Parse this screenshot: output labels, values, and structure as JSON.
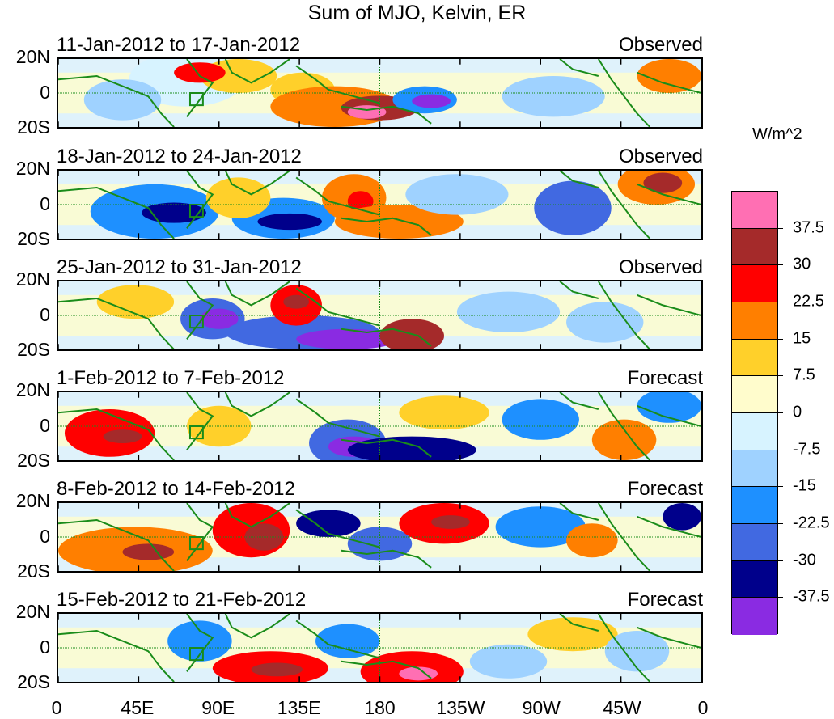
{
  "figure": {
    "title": "Sum of MJO, Kelvin, ER",
    "units": "W/m^2"
  },
  "panels": [
    {
      "period": "11-Jan-2012 to 17-Jan-2012",
      "status": "Observed"
    },
    {
      "period": "18-Jan-2012 to 24-Jan-2012",
      "status": "Observed"
    },
    {
      "period": "25-Jan-2012 to 31-Jan-2012",
      "status": "Observed"
    },
    {
      "period": "1-Feb-2012 to 7-Feb-2012",
      "status": "Forecast"
    },
    {
      "period": "8-Feb-2012 to 14-Feb-2012",
      "status": "Forecast"
    },
    {
      "period": "15-Feb-2012 to 21-Feb-2012",
      "status": "Forecast"
    }
  ],
  "lat_ticks": [
    "20N",
    "0",
    "20S"
  ],
  "lon_ticks": [
    "0",
    "45E",
    "90E",
    "135E",
    "180",
    "135W",
    "90W",
    "45W",
    "0"
  ],
  "colorbar": {
    "labels": [
      "37.5",
      "30",
      "22.5",
      "15",
      "7.5",
      "0",
      "-7.5",
      "-15",
      "-22.5",
      "-30",
      "-37.5"
    ],
    "colors": [
      "#ff6fb3",
      "#a52a2a",
      "#ff0000",
      "#ff7f00",
      "#ffd02a",
      "#fffccc",
      "#d7f3ff",
      "#9fd2ff",
      "#1e90ff",
      "#4169e1",
      "#00008b",
      "#8a2be2"
    ]
  }
}
